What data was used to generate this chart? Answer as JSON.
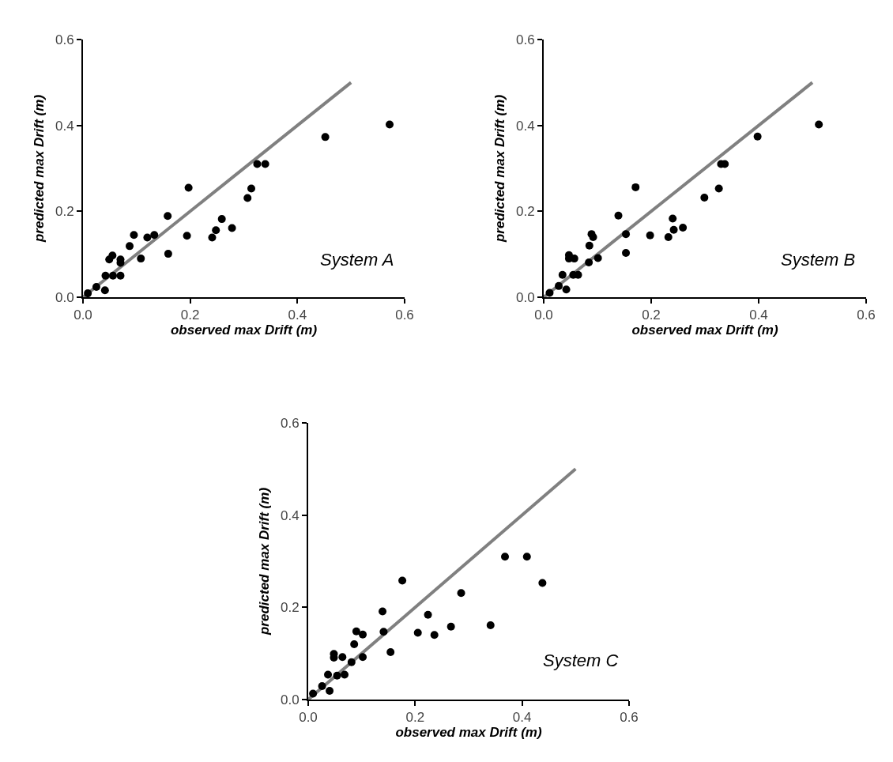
{
  "chart_data": [
    {
      "type": "scatter",
      "xlabel": "observed max Drift (m)",
      "ylabel": "predicted max Drift (m)",
      "annotations": [
        "System A"
      ],
      "xlim": [
        0,
        0.6
      ],
      "ylim": [
        0,
        0.6
      ],
      "xticks": [
        {
          "value": 0,
          "label": "0.0"
        },
        {
          "value": 0.2,
          "label": "0.2"
        },
        {
          "value": 0.4,
          "label": "0.4"
        },
        {
          "value": 0.6,
          "label": "0.6"
        }
      ],
      "yticks": [
        {
          "value": 0,
          "label": "0.0"
        },
        {
          "value": 0.2,
          "label": "0.2"
        },
        {
          "value": 0.4,
          "label": "0.4"
        },
        {
          "value": 0.6,
          "label": "0.6"
        }
      ],
      "marker": "circle",
      "series": [
        {
          "type": "line",
          "color": "#808080",
          "marker": "none",
          "line_style": "solid",
          "x": [
            0,
            0.5
          ],
          "values": [
            0,
            0.5
          ]
        },
        {
          "type": "scatter",
          "color": "#000000",
          "x": [
            0.009,
            0.025,
            0.041,
            0.042,
            0.056,
            0.07,
            0.049,
            0.055,
            0.07,
            0.07,
            0.087,
            0.095,
            0.108,
            0.12,
            0.133,
            0.158,
            0.159,
            0.194,
            0.197,
            0.241,
            0.248,
            0.259,
            0.278,
            0.307,
            0.314,
            0.325,
            0.34,
            0.452,
            0.572
          ],
          "values": [
            0.009,
            0.024,
            0.016,
            0.05,
            0.05,
            0.05,
            0.088,
            0.097,
            0.088,
            0.08,
            0.119,
            0.145,
            0.09,
            0.139,
            0.145,
            0.189,
            0.101,
            0.143,
            0.255,
            0.139,
            0.156,
            0.182,
            0.161,
            0.231,
            0.253,
            0.31,
            0.31,
            0.373,
            0.402
          ]
        }
      ]
    },
    {
      "type": "scatter",
      "xlabel": "observed max Drift (m)",
      "ylabel": "predicted max Drift (m)",
      "annotations": [
        "System B"
      ],
      "xlim": [
        0,
        0.6
      ],
      "ylim": [
        0,
        0.6
      ],
      "xticks": [
        {
          "value": 0,
          "label": "0.0"
        },
        {
          "value": 0.2,
          "label": "0.2"
        },
        {
          "value": 0.4,
          "label": "0.4"
        },
        {
          "value": 0.6,
          "label": "0.6"
        }
      ],
      "yticks": [
        {
          "value": 0,
          "label": "0.0"
        },
        {
          "value": 0.2,
          "label": "0.2"
        },
        {
          "value": 0.4,
          "label": "0.4"
        },
        {
          "value": 0.6,
          "label": "0.6"
        }
      ],
      "marker": "circle",
      "series": [
        {
          "type": "line",
          "color": "#808080",
          "marker": "none",
          "line_style": "solid",
          "x": [
            0,
            0.5
          ],
          "values": [
            0,
            0.5
          ]
        },
        {
          "type": "scatter",
          "color": "#000000",
          "x": [
            0.011,
            0.028,
            0.042,
            0.035,
            0.055,
            0.064,
            0.047,
            0.047,
            0.057,
            0.084,
            0.085,
            0.089,
            0.092,
            0.101,
            0.139,
            0.153,
            0.153,
            0.171,
            0.198,
            0.232,
            0.24,
            0.242,
            0.259,
            0.299,
            0.326,
            0.33,
            0.337,
            0.398,
            0.512
          ],
          "values": [
            0.01,
            0.026,
            0.018,
            0.052,
            0.052,
            0.052,
            0.098,
            0.09,
            0.09,
            0.081,
            0.12,
            0.147,
            0.14,
            0.091,
            0.19,
            0.147,
            0.103,
            0.256,
            0.144,
            0.14,
            0.183,
            0.157,
            0.162,
            0.232,
            0.253,
            0.31,
            0.31,
            0.374,
            0.402
          ]
        }
      ]
    },
    {
      "type": "scatter",
      "xlabel": "observed max Drift (m)",
      "ylabel": "predicted max Drift (m)",
      "annotations": [
        "System C"
      ],
      "xlim": [
        0,
        0.6
      ],
      "ylim": [
        0,
        0.6
      ],
      "xticks": [
        {
          "value": 0,
          "label": "0.0"
        },
        {
          "value": 0.2,
          "label": "0.2"
        },
        {
          "value": 0.4,
          "label": "0.4"
        },
        {
          "value": 0.6,
          "label": "0.6"
        }
      ],
      "yticks": [
        {
          "value": 0,
          "label": "0.0"
        },
        {
          "value": 0.2,
          "label": "0.2"
        },
        {
          "value": 0.4,
          "label": "0.4"
        },
        {
          "value": 0.6,
          "label": "0.6"
        }
      ],
      "marker": "circle",
      "series": [
        {
          "type": "line",
          "color": "#808080",
          "marker": "none",
          "line_style": "solid",
          "x": [
            0,
            0.5
          ],
          "values": [
            0,
            0.5
          ]
        },
        {
          "type": "scatter",
          "color": "#000000",
          "x": [
            0.009,
            0.026,
            0.04,
            0.037,
            0.054,
            0.068,
            0.048,
            0.048,
            0.064,
            0.081,
            0.086,
            0.09,
            0.102,
            0.102,
            0.139,
            0.141,
            0.154,
            0.176,
            0.205,
            0.224,
            0.236,
            0.267,
            0.286,
            0.341,
            0.368,
            0.409,
            0.438
          ],
          "values": [
            0.013,
            0.029,
            0.019,
            0.054,
            0.052,
            0.054,
            0.099,
            0.091,
            0.092,
            0.081,
            0.12,
            0.148,
            0.141,
            0.092,
            0.191,
            0.147,
            0.103,
            0.258,
            0.145,
            0.184,
            0.14,
            0.158,
            0.231,
            0.161,
            0.31,
            0.31,
            0.253
          ]
        }
      ]
    }
  ]
}
